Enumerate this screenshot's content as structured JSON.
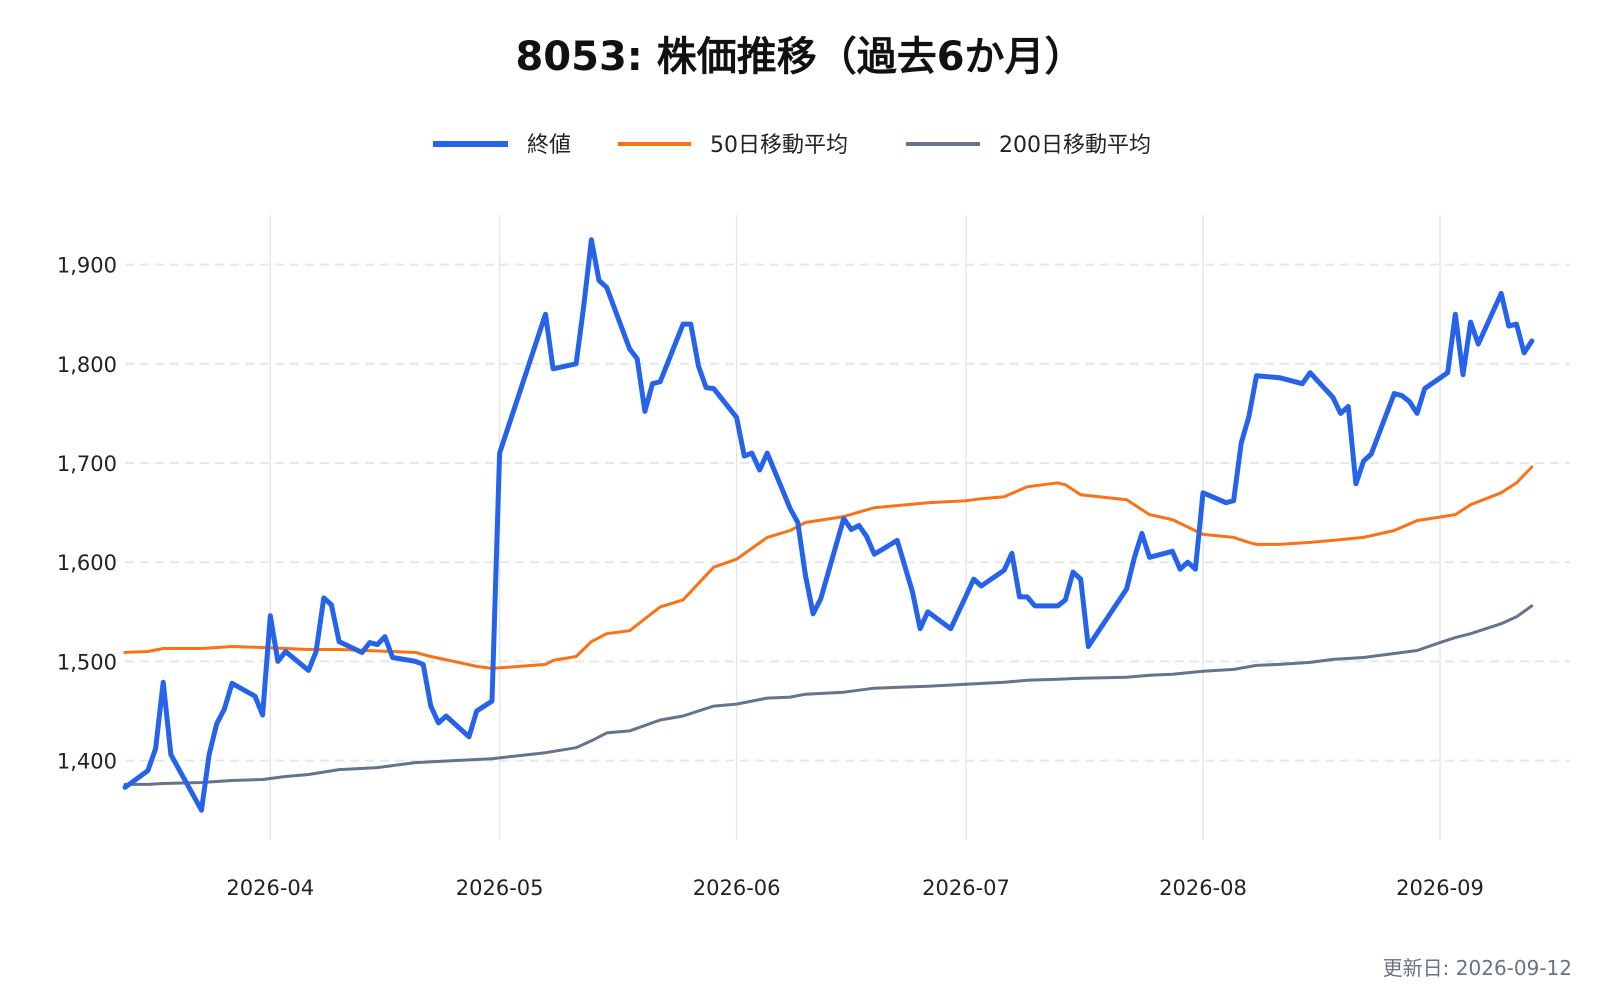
{
  "chart_data": {
    "type": "line",
    "title": "8053: 株価推移（過去6か月）",
    "xlabel": "",
    "ylabel": "",
    "ylim": [
      1320,
      1950
    ],
    "yticks": [
      1400,
      1500,
      1600,
      1700,
      1800,
      1900
    ],
    "ytick_labels": [
      "1,400",
      "1,500",
      "1,600",
      "1,700",
      "1,800",
      "1,900"
    ],
    "xlim": [
      "2026-03-13",
      "2026-09-18"
    ],
    "xticks": [
      "2026-04-01",
      "2026-05-01",
      "2026-06-01",
      "2026-07-01",
      "2026-08-01",
      "2026-09-01"
    ],
    "xtick_labels": [
      "2026-04",
      "2026-05",
      "2026-06",
      "2026-07",
      "2026-08",
      "2026-09"
    ],
    "grid": true,
    "legend_position": "top-center",
    "series": [
      {
        "name": "終値",
        "color": "#2563eb",
        "points": [
          [
            "2026-03-13",
            1373
          ],
          [
            "2026-03-16",
            1390
          ],
          [
            "2026-03-17",
            1412
          ],
          [
            "2026-03-18",
            1479
          ],
          [
            "2026-03-19",
            1406
          ],
          [
            "2026-03-23",
            1350
          ],
          [
            "2026-03-24",
            1406
          ],
          [
            "2026-03-25",
            1437
          ],
          [
            "2026-03-26",
            1452
          ],
          [
            "2026-03-27",
            1478
          ],
          [
            "2026-03-30",
            1465
          ],
          [
            "2026-03-31",
            1446
          ],
          [
            "2026-04-01",
            1546
          ],
          [
            "2026-04-02",
            1500
          ],
          [
            "2026-04-03",
            1510
          ],
          [
            "2026-04-06",
            1491
          ],
          [
            "2026-04-07",
            1510
          ],
          [
            "2026-04-08",
            1564
          ],
          [
            "2026-04-09",
            1557
          ],
          [
            "2026-04-10",
            1520
          ],
          [
            "2026-04-13",
            1509
          ],
          [
            "2026-04-14",
            1519
          ],
          [
            "2026-04-15",
            1517
          ],
          [
            "2026-04-16",
            1525
          ],
          [
            "2026-04-17",
            1504
          ],
          [
            "2026-04-20",
            1500
          ],
          [
            "2026-04-21",
            1497
          ],
          [
            "2026-04-22",
            1455
          ],
          [
            "2026-04-23",
            1438
          ],
          [
            "2026-04-24",
            1445
          ],
          [
            "2026-04-27",
            1424
          ],
          [
            "2026-04-28",
            1450
          ],
          [
            "2026-04-30",
            1460
          ],
          [
            "2026-05-01",
            1710
          ],
          [
            "2026-05-07",
            1850
          ],
          [
            "2026-05-08",
            1795
          ],
          [
            "2026-05-11",
            1800
          ],
          [
            "2026-05-12",
            1858
          ],
          [
            "2026-05-13",
            1925
          ],
          [
            "2026-05-14",
            1884
          ],
          [
            "2026-05-15",
            1877
          ],
          [
            "2026-05-18",
            1815
          ],
          [
            "2026-05-19",
            1805
          ],
          [
            "2026-05-20",
            1752
          ],
          [
            "2026-05-21",
            1780
          ],
          [
            "2026-05-22",
            1782
          ],
          [
            "2026-05-25",
            1840
          ],
          [
            "2026-05-26",
            1840
          ],
          [
            "2026-05-27",
            1798
          ],
          [
            "2026-05-28",
            1776
          ],
          [
            "2026-05-29",
            1775
          ],
          [
            "2026-06-01",
            1746
          ],
          [
            "2026-06-02",
            1707
          ],
          [
            "2026-06-03",
            1710
          ],
          [
            "2026-06-04",
            1693
          ],
          [
            "2026-06-05",
            1710
          ],
          [
            "2026-06-08",
            1654
          ],
          [
            "2026-06-09",
            1640
          ],
          [
            "2026-06-10",
            1587
          ],
          [
            "2026-06-11",
            1548
          ],
          [
            "2026-06-12",
            1563
          ],
          [
            "2026-06-15",
            1644
          ],
          [
            "2026-06-16",
            1633
          ],
          [
            "2026-06-17",
            1637
          ],
          [
            "2026-06-18",
            1626
          ],
          [
            "2026-06-19",
            1608
          ],
          [
            "2026-06-22",
            1622
          ],
          [
            "2026-06-24",
            1570
          ],
          [
            "2026-06-25",
            1533
          ],
          [
            "2026-06-26",
            1550
          ],
          [
            "2026-06-29",
            1533
          ],
          [
            "2026-07-01",
            1566
          ],
          [
            "2026-07-02",
            1583
          ],
          [
            "2026-07-03",
            1576
          ],
          [
            "2026-07-06",
            1592
          ],
          [
            "2026-07-07",
            1609
          ],
          [
            "2026-07-08",
            1565
          ],
          [
            "2026-07-09",
            1565
          ],
          [
            "2026-07-10",
            1556
          ],
          [
            "2026-07-13",
            1556
          ],
          [
            "2026-07-14",
            1562
          ],
          [
            "2026-07-15",
            1590
          ],
          [
            "2026-07-16",
            1583
          ],
          [
            "2026-07-17",
            1515
          ],
          [
            "2026-07-22",
            1573
          ],
          [
            "2026-07-23",
            1604
          ],
          [
            "2026-07-24",
            1629
          ],
          [
            "2026-07-25",
            1605
          ],
          [
            "2026-07-28",
            1611
          ],
          [
            "2026-07-29",
            1593
          ],
          [
            "2026-07-30",
            1600
          ],
          [
            "2026-07-31",
            1593
          ],
          [
            "2026-08-01",
            1670
          ],
          [
            "2026-08-04",
            1660
          ],
          [
            "2026-08-05",
            1662
          ],
          [
            "2026-08-06",
            1720
          ],
          [
            "2026-08-07",
            1747
          ],
          [
            "2026-08-08",
            1788
          ],
          [
            "2026-08-11",
            1786
          ],
          [
            "2026-08-14",
            1780
          ],
          [
            "2026-08-15",
            1791
          ],
          [
            "2026-08-18",
            1766
          ],
          [
            "2026-08-19",
            1750
          ],
          [
            "2026-08-20",
            1757
          ],
          [
            "2026-08-21",
            1679
          ],
          [
            "2026-08-22",
            1702
          ],
          [
            "2026-08-23",
            1709
          ],
          [
            "2026-08-26",
            1770
          ],
          [
            "2026-08-27",
            1768
          ],
          [
            "2026-08-28",
            1762
          ],
          [
            "2026-08-29",
            1750
          ],
          [
            "2026-08-30",
            1775
          ],
          [
            "2026-09-02",
            1791
          ],
          [
            "2026-09-03",
            1850
          ],
          [
            "2026-09-04",
            1789
          ],
          [
            "2026-09-05",
            1842
          ],
          [
            "2026-09-06",
            1820
          ],
          [
            "2026-09-09",
            1871
          ],
          [
            "2026-09-10",
            1838
          ],
          [
            "2026-09-11",
            1840
          ],
          [
            "2026-09-12",
            1811
          ],
          [
            "2026-09-13",
            1823
          ]
        ]
      },
      {
        "name": "50日移動平均",
        "color": "#f97316",
        "points": [
          [
            "2026-03-13",
            1509
          ],
          [
            "2026-03-16",
            1510
          ],
          [
            "2026-03-18",
            1513
          ],
          [
            "2026-03-23",
            1513
          ],
          [
            "2026-03-27",
            1515
          ],
          [
            "2026-03-31",
            1514
          ],
          [
            "2026-04-06",
            1512
          ],
          [
            "2026-04-10",
            1512
          ],
          [
            "2026-04-17",
            1510
          ],
          [
            "2026-04-20",
            1509
          ],
          [
            "2026-04-22",
            1505
          ],
          [
            "2026-04-25",
            1500
          ],
          [
            "2026-04-28",
            1495
          ],
          [
            "2026-04-30",
            1493
          ],
          [
            "2026-05-07",
            1497
          ],
          [
            "2026-05-08",
            1501
          ],
          [
            "2026-05-11",
            1505
          ],
          [
            "2026-05-13",
            1520
          ],
          [
            "2026-05-15",
            1528
          ],
          [
            "2026-05-18",
            1531
          ],
          [
            "2026-05-22",
            1555
          ],
          [
            "2026-05-25",
            1562
          ],
          [
            "2026-05-29",
            1595
          ],
          [
            "2026-06-01",
            1603
          ],
          [
            "2026-06-05",
            1625
          ],
          [
            "2026-06-08",
            1632
          ],
          [
            "2026-06-10",
            1640
          ],
          [
            "2026-06-15",
            1646
          ],
          [
            "2026-06-19",
            1655
          ],
          [
            "2026-06-26",
            1660
          ],
          [
            "2026-07-01",
            1662
          ],
          [
            "2026-07-03",
            1664
          ],
          [
            "2026-07-06",
            1666
          ],
          [
            "2026-07-09",
            1676
          ],
          [
            "2026-07-12",
            1679
          ],
          [
            "2026-07-13",
            1680
          ],
          [
            "2026-07-14",
            1678
          ],
          [
            "2026-07-16",
            1668
          ],
          [
            "2026-07-22",
            1663
          ],
          [
            "2026-07-25",
            1648
          ],
          [
            "2026-07-28",
            1643
          ],
          [
            "2026-08-01",
            1628
          ],
          [
            "2026-08-05",
            1625
          ],
          [
            "2026-08-07",
            1620
          ],
          [
            "2026-08-08",
            1618
          ],
          [
            "2026-08-11",
            1618
          ],
          [
            "2026-08-15",
            1620
          ],
          [
            "2026-08-18",
            1622
          ],
          [
            "2026-08-22",
            1625
          ],
          [
            "2026-08-26",
            1632
          ],
          [
            "2026-08-29",
            1642
          ],
          [
            "2026-09-03",
            1648
          ],
          [
            "2026-09-05",
            1658
          ],
          [
            "2026-09-09",
            1670
          ],
          [
            "2026-09-11",
            1680
          ],
          [
            "2026-09-13",
            1696
          ]
        ]
      },
      {
        "name": "200日移動平均",
        "color": "#64748b",
        "points": [
          [
            "2026-03-13",
            1376
          ],
          [
            "2026-03-16",
            1376
          ],
          [
            "2026-03-18",
            1377
          ],
          [
            "2026-03-23",
            1378
          ],
          [
            "2026-03-27",
            1380
          ],
          [
            "2026-03-31",
            1381
          ],
          [
            "2026-04-03",
            1384
          ],
          [
            "2026-04-06",
            1386
          ],
          [
            "2026-04-10",
            1391
          ],
          [
            "2026-04-15",
            1393
          ],
          [
            "2026-04-20",
            1398
          ],
          [
            "2026-04-25",
            1400
          ],
          [
            "2026-04-30",
            1402
          ],
          [
            "2026-05-07",
            1408
          ],
          [
            "2026-05-11",
            1413
          ],
          [
            "2026-05-13",
            1420
          ],
          [
            "2026-05-15",
            1428
          ],
          [
            "2026-05-18",
            1430
          ],
          [
            "2026-05-22",
            1441
          ],
          [
            "2026-05-25",
            1445
          ],
          [
            "2026-05-29",
            1455
          ],
          [
            "2026-06-01",
            1457
          ],
          [
            "2026-06-05",
            1463
          ],
          [
            "2026-06-08",
            1464
          ],
          [
            "2026-06-10",
            1467
          ],
          [
            "2026-06-15",
            1469
          ],
          [
            "2026-06-19",
            1473
          ],
          [
            "2026-06-26",
            1475
          ],
          [
            "2026-07-01",
            1477
          ],
          [
            "2026-07-06",
            1479
          ],
          [
            "2026-07-09",
            1481
          ],
          [
            "2026-07-13",
            1482
          ],
          [
            "2026-07-16",
            1483
          ],
          [
            "2026-07-22",
            1484
          ],
          [
            "2026-07-25",
            1486
          ],
          [
            "2026-07-28",
            1487
          ],
          [
            "2026-08-01",
            1490
          ],
          [
            "2026-08-05",
            1492
          ],
          [
            "2026-08-08",
            1496
          ],
          [
            "2026-08-11",
            1497
          ],
          [
            "2026-08-15",
            1499
          ],
          [
            "2026-08-18",
            1502
          ],
          [
            "2026-08-22",
            1504
          ],
          [
            "2026-08-26",
            1508
          ],
          [
            "2026-08-29",
            1511
          ],
          [
            "2026-09-01",
            1519
          ],
          [
            "2026-09-03",
            1524
          ],
          [
            "2026-09-05",
            1528
          ],
          [
            "2026-09-07",
            1533
          ],
          [
            "2026-09-09",
            1538
          ],
          [
            "2026-09-11",
            1545
          ],
          [
            "2026-09-13",
            1556
          ]
        ]
      }
    ],
    "footer_text": "更新日: 2026-09-12"
  },
  "colors": {
    "grid": "#e5e7eb",
    "background": "#ffffff"
  }
}
